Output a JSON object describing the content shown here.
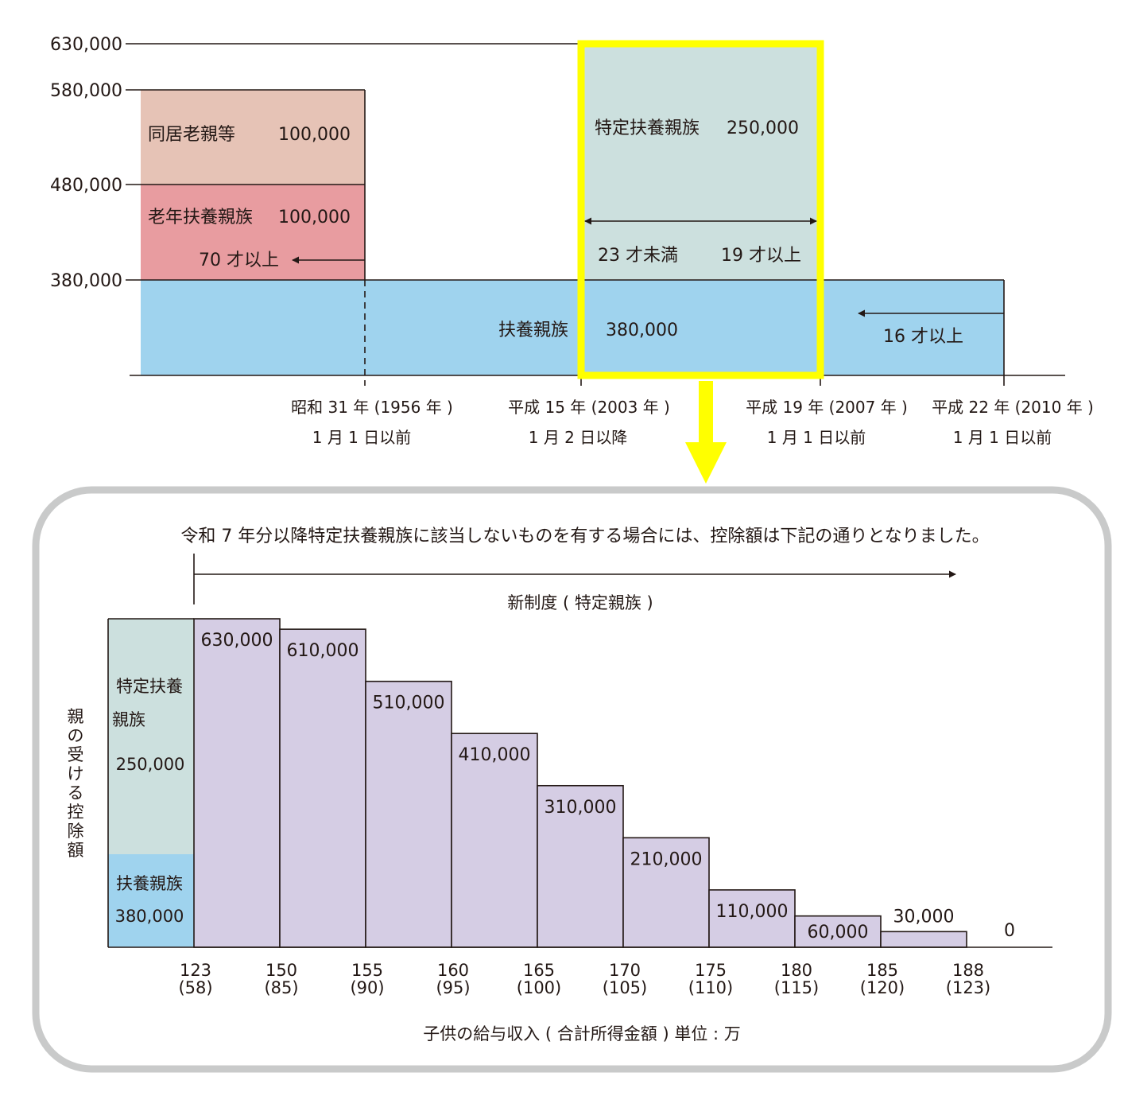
{
  "top_diagram": {
    "y_axis_labels": [
      "630,000",
      "580,000",
      "480,000",
      "380,000"
    ],
    "elderly_cohabiting": {
      "label": "同居老親等",
      "value": "100,000",
      "color": "#e6c3b6"
    },
    "elderly_dependent": {
      "label": "老年扶養親族",
      "value": "100,000",
      "age_condition": "70 才以上",
      "color": "#e89ca0"
    },
    "dependent": {
      "label": "扶養親族",
      "value": "380,000",
      "age_condition": "16 才以上",
      "color": "#9fd3ee"
    },
    "specific_dependent": {
      "label": "特定扶養親族",
      "value": "250,000",
      "age_lower": "23 才未満",
      "age_upper": "19 才以上",
      "color": "#cce0de",
      "highlight_color": "#ffff00"
    },
    "date_markers": [
      {
        "line1": "昭和 31 年 (1956 年 )",
        "line2": "1 月 1 日以前"
      },
      {
        "line1": "平成 15 年 (2003 年 )",
        "line2": "1 月 2 日以降"
      },
      {
        "line1": "平成 19 年 (2007 年 )",
        "line2": "1 月 1 日以前"
      },
      {
        "line1": "平成 22 年 (2010 年 )",
        "line2": "1 月 1 日以前"
      }
    ]
  },
  "notice": "令和 7 年分以降特定扶養親族に該当しないものを有する場合には、控除額は下記の通りとなりました。",
  "new_system_label": "新制度 ( 特定親族 )",
  "bottom_chart": {
    "y_axis_title": [
      "親",
      "の",
      "受",
      "け",
      "る",
      "控",
      "除",
      "額"
    ],
    "x_axis_title": "子供の給与収入 ( 合計所得金額 ) 単位 : 万",
    "left_column": {
      "specific_label_line1": "特定扶養",
      "specific_label_line2": "親族",
      "specific_value": "250,000",
      "dependent_label": "扶養親族",
      "dependent_value": "380,000"
    },
    "bar_color": "#d5cde4"
  },
  "chart_data": {
    "type": "bar",
    "title": "",
    "xlabel": "子供の給与収入 ( 合計所得金額 ) 単位 : 万",
    "ylabel": "親の受ける控除額",
    "x_ticks": [
      {
        "income": "123",
        "total": "(58)"
      },
      {
        "income": "150",
        "total": "(85)"
      },
      {
        "income": "155",
        "total": "(90)"
      },
      {
        "income": "160",
        "total": "(95)"
      },
      {
        "income": "165",
        "total": "(100)"
      },
      {
        "income": "170",
        "total": "(105)"
      },
      {
        "income": "175",
        "total": "(110)"
      },
      {
        "income": "180",
        "total": "(115)"
      },
      {
        "income": "185",
        "total": "(120)"
      },
      {
        "income": "188",
        "total": "(123)"
      }
    ],
    "values": [
      630000,
      610000,
      510000,
      410000,
      310000,
      210000,
      110000,
      60000,
      30000,
      0
    ],
    "value_labels": [
      "630,000",
      "610,000",
      "510,000",
      "410,000",
      "310,000",
      "210,000",
      "110,000",
      "60,000",
      "30,000",
      "0"
    ],
    "ylim": [
      0,
      630000
    ],
    "grid": false,
    "legend": "none"
  }
}
